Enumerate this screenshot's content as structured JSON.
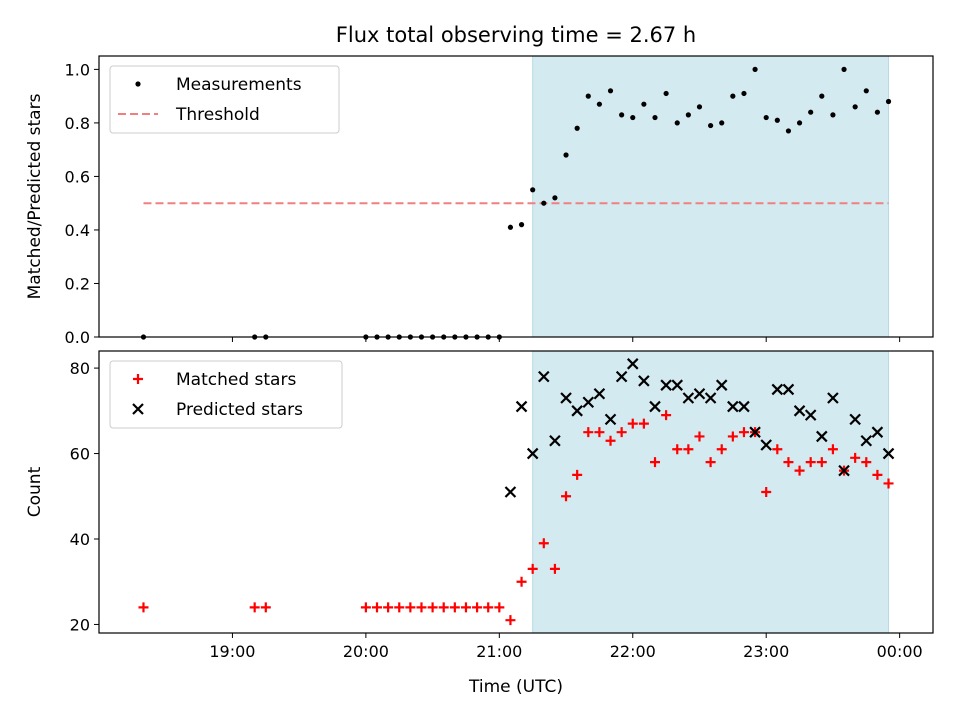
{
  "title": "Flux total observing time = 2.67 h",
  "chart_data": [
    {
      "type": "scatter",
      "panel": "top",
      "ylabel": "Matched/Predicted stars",
      "xlabel": "",
      "ylim": [
        0,
        1.05
      ],
      "yticks": [
        0.0,
        0.2,
        0.4,
        0.6,
        0.8,
        1.0
      ],
      "ytick_labels": [
        "0.0",
        "0.2",
        "0.4",
        "0.6",
        "0.8",
        "1.0"
      ],
      "shaded_span": [
        "21:15",
        "23:55"
      ],
      "shade_color": "#d4eaf1",
      "legend": [
        "Measurements",
        "Threshold"
      ],
      "legend_placement": "upper-left",
      "threshold": {
        "name": "Threshold",
        "value": 0.5,
        "x_start": "18:20",
        "x_end": "23:55",
        "color": "#f08080"
      },
      "series": [
        {
          "name": "Measurements",
          "color": "#000000",
          "x": [
            "18:20",
            "19:10",
            "19:15",
            "20:00",
            "20:05",
            "20:10",
            "20:15",
            "20:20",
            "20:25",
            "20:30",
            "20:35",
            "20:40",
            "20:45",
            "20:50",
            "20:55",
            "21:00",
            "21:05",
            "21:10",
            "21:15",
            "21:20",
            "21:25",
            "21:30",
            "21:35",
            "21:40",
            "21:45",
            "21:50",
            "21:55",
            "22:00",
            "22:05",
            "22:10",
            "22:15",
            "22:20",
            "22:25",
            "22:30",
            "22:35",
            "22:40",
            "22:45",
            "22:50",
            "22:55",
            "23:00",
            "23:05",
            "23:10",
            "23:15",
            "23:20",
            "23:25",
            "23:30",
            "23:35",
            "23:40",
            "23:45",
            "23:50",
            "23:55"
          ],
          "y": [
            0.0,
            0.0,
            0.0,
            0.0,
            0.0,
            0.0,
            0.0,
            0.0,
            0.0,
            0.0,
            0.0,
            0.0,
            0.0,
            0.0,
            0.0,
            0.0,
            0.41,
            0.42,
            0.55,
            0.5,
            0.52,
            0.68,
            0.78,
            0.9,
            0.87,
            0.92,
            0.83,
            0.82,
            0.87,
            0.82,
            0.91,
            0.8,
            0.83,
            0.86,
            0.79,
            0.8,
            0.9,
            0.91,
            1.0,
            0.82,
            0.81,
            0.77,
            0.8,
            0.84,
            0.9,
            0.83,
            1.0,
            0.86,
            0.92,
            0.84,
            0.88
          ]
        }
      ]
    },
    {
      "type": "scatter",
      "panel": "bottom",
      "ylabel": "Count",
      "xlabel": "Time (UTC)",
      "ylim": [
        18,
        84
      ],
      "yticks": [
        20,
        40,
        60,
        80
      ],
      "ytick_labels": [
        "20",
        "40",
        "60",
        "80"
      ],
      "xticks": [
        "19:00",
        "20:00",
        "21:00",
        "22:00",
        "23:00",
        "00:00"
      ],
      "shaded_span": [
        "21:15",
        "23:55"
      ],
      "legend": [
        "Matched stars",
        "Predicted stars"
      ],
      "legend_placement": "upper-left",
      "series": [
        {
          "name": "Matched stars",
          "marker": "plus",
          "color": "#ff0000",
          "x": [
            "18:20",
            "19:10",
            "19:15",
            "20:00",
            "20:05",
            "20:10",
            "20:15",
            "20:20",
            "20:25",
            "20:30",
            "20:35",
            "20:40",
            "20:45",
            "20:50",
            "20:55",
            "21:00",
            "21:05",
            "21:10",
            "21:15",
            "21:20",
            "21:25",
            "21:30",
            "21:35",
            "21:40",
            "21:45",
            "21:50",
            "21:55",
            "22:00",
            "22:05",
            "22:10",
            "22:15",
            "22:20",
            "22:25",
            "22:30",
            "22:35",
            "22:40",
            "22:45",
            "22:50",
            "22:55",
            "23:00",
            "23:05",
            "23:10",
            "23:15",
            "23:20",
            "23:25",
            "23:30",
            "23:35",
            "23:40",
            "23:45",
            "23:50",
            "23:55"
          ],
          "y": [
            24,
            24,
            24,
            24,
            24,
            24,
            24,
            24,
            24,
            24,
            24,
            24,
            24,
            24,
            24,
            24,
            21,
            30,
            33,
            39,
            33,
            50,
            55,
            65,
            65,
            63,
            65,
            67,
            67,
            58,
            69,
            61,
            61,
            64,
            58,
            61,
            64,
            65,
            65,
            51,
            61,
            58,
            56,
            58,
            58,
            61,
            56,
            59,
            58,
            55,
            53
          ]
        },
        {
          "name": "Predicted stars",
          "marker": "x",
          "color": "#000000",
          "x": [
            "21:05",
            "21:10",
            "21:15",
            "21:20",
            "21:25",
            "21:30",
            "21:35",
            "21:40",
            "21:45",
            "21:50",
            "21:55",
            "22:00",
            "22:05",
            "22:10",
            "22:15",
            "22:20",
            "22:25",
            "22:30",
            "22:35",
            "22:40",
            "22:45",
            "22:50",
            "22:55",
            "23:00",
            "23:05",
            "23:10",
            "23:15",
            "23:20",
            "23:25",
            "23:30",
            "23:35",
            "23:40",
            "23:45",
            "23:50",
            "23:55"
          ],
          "y": [
            51,
            71,
            60,
            78,
            63,
            73,
            70,
            72,
            74,
            68,
            78,
            81,
            77,
            71,
            76,
            76,
            73,
            74,
            73,
            76,
            71,
            71,
            65,
            62,
            75,
            75,
            70,
            69,
            64,
            73,
            56,
            68,
            63,
            65,
            60
          ]
        }
      ]
    }
  ]
}
